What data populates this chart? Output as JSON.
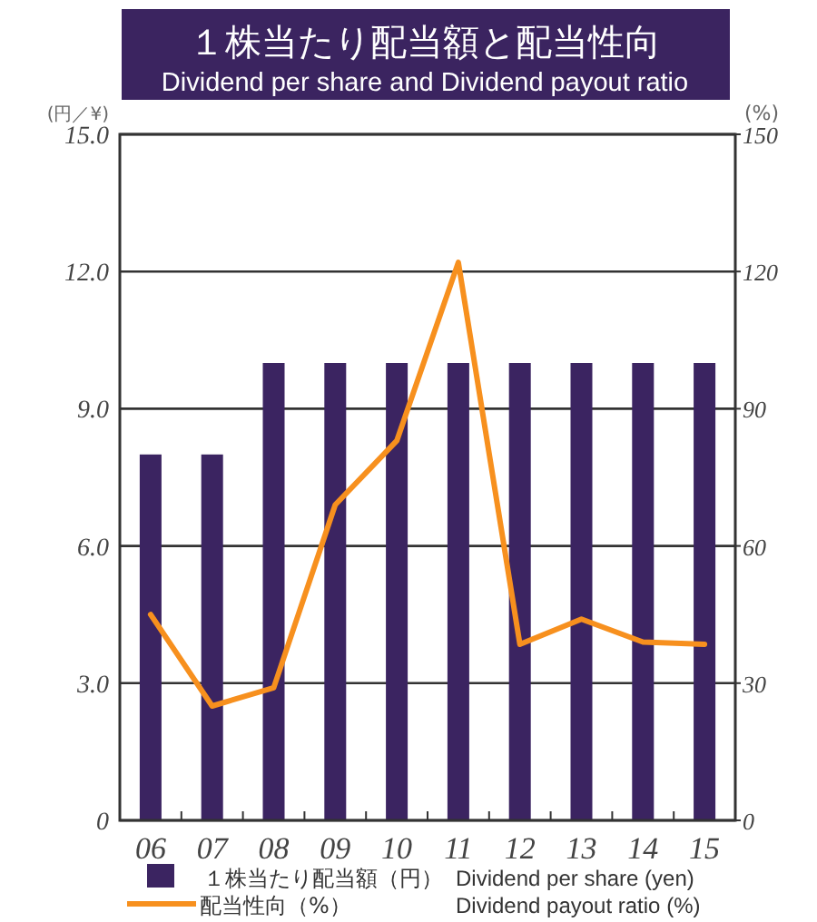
{
  "chart_data": {
    "type": "bar",
    "title": "１株当たり配当額と配当性向",
    "subtitle": "Dividend per share and Dividend payout ratio",
    "ylabel": "(円／¥)",
    "y2label": "(%)",
    "categories": [
      "06",
      "07",
      "08",
      "09",
      "10",
      "11",
      "12",
      "13",
      "14",
      "15"
    ],
    "series": [
      {
        "name": "１株当たり配当額（円）",
        "color": "#3b2461",
        "values": [
          8.0,
          8.0,
          10.0,
          10.0,
          10.0,
          10.0,
          10.0,
          10.0,
          10.0,
          10.0
        ]
      },
      {
        "name": "配当性向（%）",
        "type": "line",
        "axis": "y2",
        "color": "#f7901e",
        "values": [
          45,
          25,
          29,
          69,
          83,
          122,
          38.5,
          44,
          39,
          38.5
        ]
      }
    ],
    "ylim": [
      0,
      15
    ],
    "yticks": [
      0,
      {
        "value": 3,
        "label": "3.0"
      },
      {
        "value": 6,
        "label": "6.0"
      },
      {
        "value": 9,
        "label": "9.0"
      },
      {
        "value": 12,
        "label": "12.0"
      },
      {
        "value": 15,
        "label": "15.0"
      }
    ],
    "y2lim": [
      0,
      150
    ],
    "y2ticks": [
      0,
      30,
      60,
      90,
      120,
      150
    ],
    "grid": "y",
    "legend": "bottom",
    "annotations": [
      "Dividend per share (yen)",
      "Dividend payout ratio (%)"
    ]
  }
}
